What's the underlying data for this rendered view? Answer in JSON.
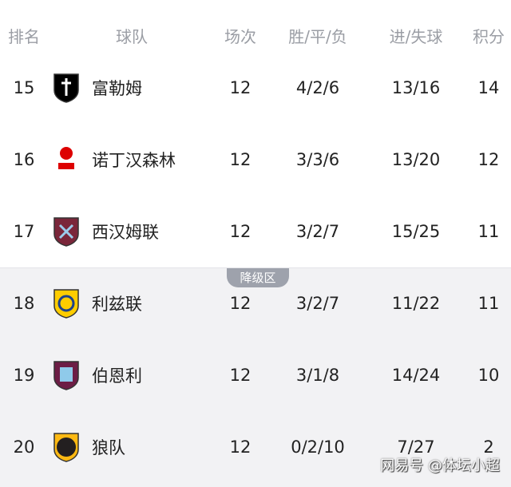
{
  "header": {
    "rank": "排名",
    "team": "球队",
    "played": "场次",
    "wdl": "胜/平/负",
    "goals": "进/失球",
    "points": "积分"
  },
  "relegation_label": "降级区",
  "colors": {
    "header_text": "#9a9da4",
    "relegation_bg": "#f2f2f4",
    "badge": "#9ea2ac"
  },
  "rows": [
    {
      "rank": "15",
      "team": "富勒姆",
      "played": "12",
      "wdl": "4/2/6",
      "goals": "13/16",
      "points": "14",
      "logo": "fulham-crest",
      "color": "#000000"
    },
    {
      "rank": "16",
      "team": "诺丁汉森林",
      "played": "12",
      "wdl": "3/3/6",
      "goals": "13/20",
      "points": "12",
      "logo": "nottingham-forest-crest",
      "color": "#dd0000"
    },
    {
      "rank": "17",
      "team": "西汉姆联",
      "played": "12",
      "wdl": "3/2/7",
      "goals": "15/25",
      "points": "11",
      "logo": "west-ham-crest",
      "color": "#7a263a"
    },
    {
      "rank": "18",
      "team": "利兹联",
      "played": "12",
      "wdl": "3/2/7",
      "goals": "11/22",
      "points": "11",
      "logo": "leeds-crest",
      "color": "#ffcd00"
    },
    {
      "rank": "19",
      "team": "伯恩利",
      "played": "12",
      "wdl": "3/1/8",
      "goals": "14/24",
      "points": "10",
      "logo": "burnley-crest",
      "color": "#6c1d45"
    },
    {
      "rank": "20",
      "team": "狼队",
      "played": "12",
      "wdl": "0/2/10",
      "goals": "7/27",
      "points": "2",
      "logo": "wolves-crest",
      "color": "#fdb913"
    }
  ],
  "watermark": "网易号 @体坛小超"
}
